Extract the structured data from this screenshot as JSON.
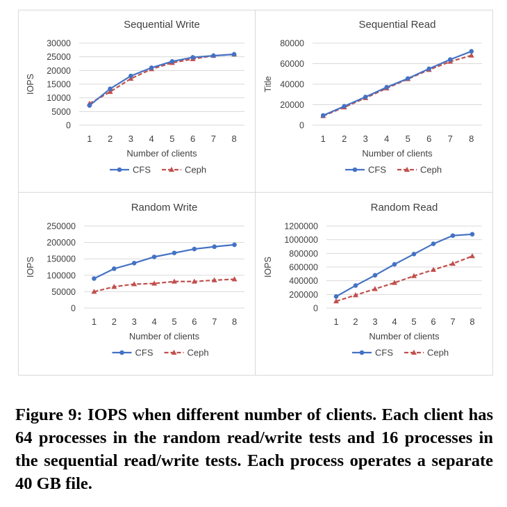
{
  "caption": "Figure 9: IOPS when different number of clients. Each client has 64 processes in the random read/write tests and 16 processes in the sequential read/write tests. Each process operates a separate 40 GB file.",
  "colors": {
    "cfs": "#4472c4",
    "ceph": "#c0504d",
    "grid": "#d9d9d9",
    "text": "#404040"
  },
  "chart_data": [
    {
      "type": "line",
      "title": "Sequential Write",
      "xlabel": "Number of clients",
      "ylabel": "IOPS",
      "categories": [
        "1",
        "2",
        "3",
        "4",
        "5",
        "6",
        "7",
        "8"
      ],
      "ylim": [
        0,
        30000
      ],
      "yticks": [
        "30000",
        "25000",
        "20000",
        "15000",
        "10000",
        "5000",
        "0"
      ],
      "series": [
        {
          "name": "CFS",
          "values": [
            7200,
            13300,
            18000,
            21000,
            23300,
            24800,
            25400,
            25900
          ],
          "style": "solid-circle"
        },
        {
          "name": "Ceph",
          "values": [
            7900,
            12200,
            17000,
            20500,
            22800,
            24200,
            25400,
            25900
          ],
          "style": "dashed-triangle"
        }
      ],
      "legend": "bottom",
      "grid": true
    },
    {
      "type": "line",
      "title": "Sequential Read",
      "xlabel": "Number of clients",
      "ylabel": "Title",
      "categories": [
        "1",
        "2",
        "3",
        "4",
        "5",
        "6",
        "7",
        "8"
      ],
      "ylim": [
        0,
        80000
      ],
      "yticks": [
        "80000",
        "60000",
        "40000",
        "20000",
        "0"
      ],
      "series": [
        {
          "name": "CFS",
          "values": [
            9500,
            18500,
            27500,
            37000,
            45500,
            55000,
            64000,
            72000
          ],
          "style": "solid-circle"
        },
        {
          "name": "Ceph",
          "values": [
            9000,
            17500,
            26500,
            36000,
            45000,
            54000,
            62000,
            68000
          ],
          "style": "dashed-triangle"
        }
      ],
      "legend": "bottom",
      "grid": true
    },
    {
      "type": "line",
      "title": "Random Write",
      "xlabel": "Number of clients",
      "ylabel": "IOPS",
      "categories": [
        "1",
        "2",
        "3",
        "4",
        "5",
        "6",
        "7",
        "8"
      ],
      "ylim": [
        0,
        250000
      ],
      "yticks": [
        "250000",
        "200000",
        "150000",
        "100000",
        "50000",
        "0"
      ],
      "series": [
        {
          "name": "CFS",
          "values": [
            90000,
            120000,
            137000,
            156000,
            168000,
            180000,
            187000,
            193000
          ],
          "style": "solid-circle"
        },
        {
          "name": "Ceph",
          "values": [
            50000,
            65000,
            73000,
            75000,
            81000,
            81000,
            85000,
            88000
          ],
          "style": "dashed-triangle"
        }
      ],
      "legend": "bottom",
      "grid": true
    },
    {
      "type": "line",
      "title": "Random Read",
      "xlabel": "Number of clients",
      "ylabel": "IOPS",
      "categories": [
        "1",
        "2",
        "3",
        "4",
        "5",
        "6",
        "7",
        "8"
      ],
      "ylim": [
        0,
        1200000
      ],
      "yticks": [
        "1200000",
        "1000000",
        "800000",
        "600000",
        "400000",
        "200000",
        "0"
      ],
      "series": [
        {
          "name": "CFS",
          "values": [
            170000,
            330000,
            480000,
            640000,
            790000,
            940000,
            1060000,
            1080000
          ],
          "style": "solid-circle"
        },
        {
          "name": "Ceph",
          "values": [
            100000,
            190000,
            280000,
            370000,
            470000,
            560000,
            650000,
            760000
          ],
          "style": "dashed-triangle"
        }
      ],
      "legend": "bottom",
      "grid": true
    }
  ]
}
